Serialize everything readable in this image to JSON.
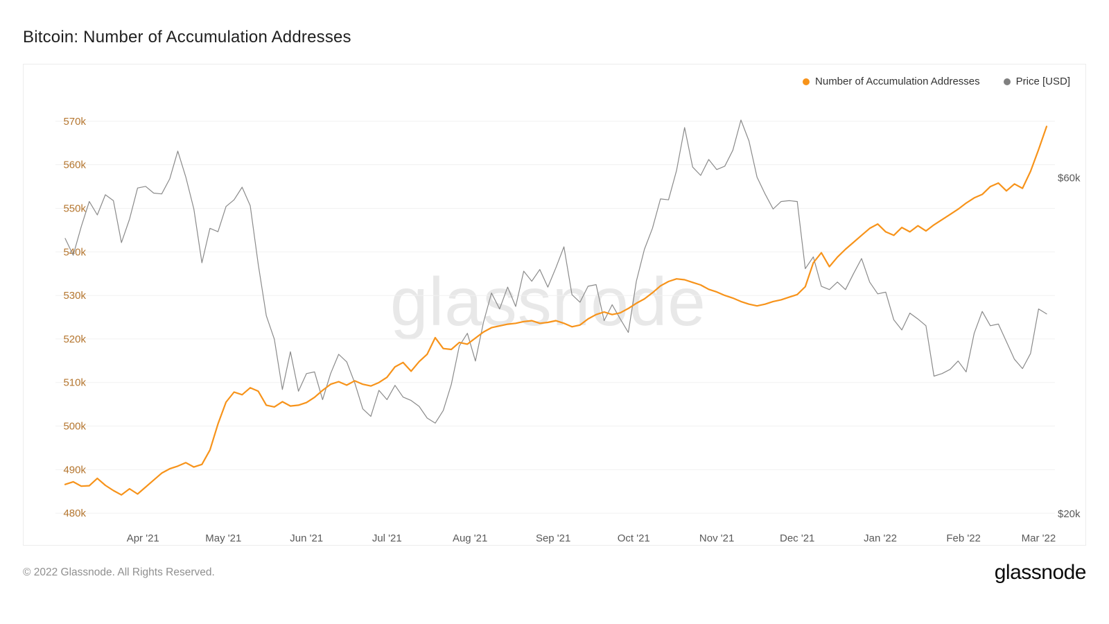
{
  "page": {
    "title": "Bitcoin: Number of Accumulation Addresses",
    "footer_copyright": "© 2022 Glassnode. All Rights Reserved.",
    "brand": "glassnode",
    "watermark": "glassnode"
  },
  "legend": {
    "items": [
      {
        "label": "Number of Accumulation Addresses",
        "color": "#F7931A"
      },
      {
        "label": "Price [USD]",
        "color": "#808080"
      }
    ]
  },
  "chart_data": {
    "type": "line",
    "title": "Bitcoin: Number of Accumulation Addresses",
    "grid": "horizontal",
    "legend_position": "top-right",
    "x_start_date": "2021-03-03",
    "x_step_days": 3,
    "x_tick_labels": [
      "Apr '21",
      "May '21",
      "Jun '21",
      "Jul '21",
      "Aug '21",
      "Sep '21",
      "Oct '21",
      "Nov '21",
      "Dec '21",
      "Jan '22",
      "Feb '22",
      "Mar '22"
    ],
    "x_tick_positions": [
      9.67,
      19.67,
      30,
      40,
      50.33,
      60.67,
      70.67,
      81,
      91,
      101.33,
      111.67,
      121
    ],
    "left_axis": {
      "unit": "addresses (thousands)",
      "tick_values": [
        480,
        490,
        500,
        510,
        520,
        530,
        540,
        550,
        560,
        570
      ],
      "tick_labels": [
        "480k",
        "490k",
        "500k",
        "510k",
        "520k",
        "530k",
        "540k",
        "550k",
        "560k",
        "570k"
      ],
      "range": [
        477,
        573
      ],
      "color": "#b5762f"
    },
    "right_axis": {
      "unit": "USD",
      "ticks": [
        {
          "label": "$60k",
          "value": 60000
        },
        {
          "label": "$20k",
          "value": 20000
        }
      ],
      "range": [
        18519,
        68313
      ],
      "color": "#595959"
    },
    "series": [
      {
        "name": "Price [USD]",
        "axis": "right",
        "color": "#8a8a8a",
        "unit": "USD",
        "values": [
          52800,
          50800,
          54200,
          57200,
          55600,
          58000,
          57300,
          52300,
          55100,
          58800,
          59000,
          58200,
          58100,
          59900,
          63200,
          60100,
          56300,
          49900,
          54000,
          53600,
          56600,
          57400,
          58900,
          56700,
          49700,
          43600,
          40800,
          34800,
          39300,
          34600,
          36700,
          36900,
          33600,
          36700,
          39000,
          38100,
          35600,
          32500,
          31600,
          34700,
          33600,
          35300,
          33900,
          33500,
          32800,
          31400,
          30800,
          32300,
          35400,
          40000,
          41500,
          38200,
          42800,
          46300,
          44400,
          47000,
          44700,
          48900,
          47700,
          49100,
          47000,
          49300,
          51800,
          46100,
          45200,
          47100,
          47300,
          43000,
          44900,
          43200,
          41600,
          47700,
          51500,
          54000,
          57500,
          57400,
          60900,
          66000,
          61300,
          60300,
          62200,
          61000,
          61400,
          63300,
          66900,
          64400,
          60100,
          58100,
          56300,
          57200,
          57300,
          57200,
          49200,
          50600,
          47100,
          46700,
          47600,
          46700,
          48600,
          50400,
          47600,
          46200,
          46400,
          43100,
          41900,
          43900,
          43200,
          42400,
          36400,
          36700,
          37200,
          38200,
          36900,
          41500,
          44100,
          42400,
          42600,
          40500,
          38400,
          37300,
          39100,
          44400,
          43800
        ]
      },
      {
        "name": "Number of Accumulation Addresses",
        "axis": "left",
        "color": "#F7931A",
        "unit": "thousand addresses",
        "values": [
          486.6,
          487.2,
          486.2,
          486.3,
          488.0,
          486.4,
          485.2,
          484.2,
          485.6,
          484.4,
          486.0,
          487.6,
          489.2,
          490.2,
          490.8,
          491.6,
          490.6,
          491.2,
          494.5,
          500.5,
          505.5,
          507.8,
          507.2,
          508.8,
          508.0,
          504.8,
          504.4,
          505.6,
          504.6,
          504.8,
          505.4,
          506.6,
          508.2,
          509.6,
          510.2,
          509.4,
          510.4,
          509.6,
          509.2,
          510.0,
          511.2,
          513.6,
          514.6,
          512.6,
          514.8,
          516.5,
          520.3,
          517.8,
          517.6,
          519.2,
          518.8,
          520.2,
          521.6,
          522.6,
          523.0,
          523.4,
          523.6,
          524.0,
          524.2,
          523.6,
          523.8,
          524.2,
          523.6,
          522.8,
          523.2,
          524.6,
          525.6,
          526.2,
          525.6,
          526.0,
          527.0,
          528.2,
          529.2,
          530.6,
          532.2,
          533.2,
          533.8,
          533.6,
          533.0,
          532.4,
          531.4,
          530.8,
          530.0,
          529.4,
          528.6,
          528.0,
          527.6,
          528.0,
          528.6,
          529.0,
          529.6,
          530.2,
          532.0,
          537.5,
          539.8,
          536.6,
          538.8,
          540.6,
          542.2,
          543.8,
          545.4,
          546.4,
          544.6,
          543.8,
          545.6,
          544.6,
          546.0,
          544.8,
          546.2,
          547.4,
          548.6,
          549.8,
          551.2,
          552.4,
          553.2,
          555.0,
          555.8,
          554.0,
          555.6,
          554.6,
          558.5,
          563.5,
          568.8
        ]
      }
    ]
  }
}
